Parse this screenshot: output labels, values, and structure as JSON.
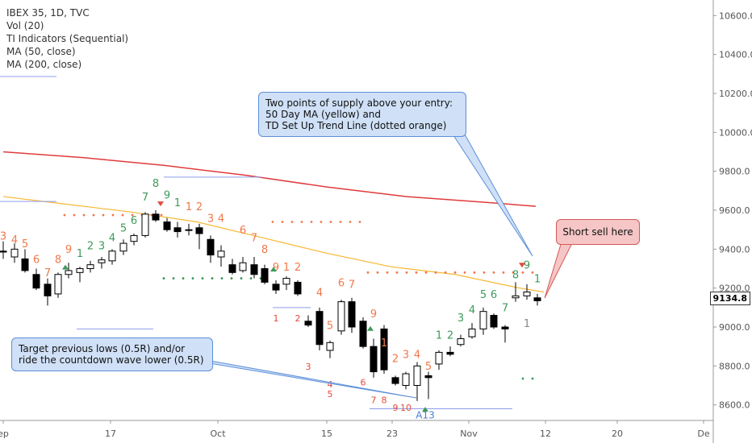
{
  "legend": {
    "symbol": "IBEX 35, 1D, TVC",
    "vol": "Vol (20)",
    "ti": "TI Indicators (Sequential)",
    "ma50": "MA (50, close)",
    "ma200": "MA (200, close)"
  },
  "callouts": {
    "supply": "Two points of supply above your entry:\n50 Day MA (yellow) and\nTD Set Up Trend Line (dotted orange)",
    "short": "Short sell here",
    "target": "Target previous lows (0.5R) and/or\nride the countdown wave lower (0.5R)"
  },
  "last_price": "9134.8",
  "colors": {
    "ma50": "#f7b731",
    "ma200": "#e03b3b",
    "setup_sell": "#f0784a",
    "setup_buy": "#3d9a5a",
    "countdown": "#e24b3b",
    "trendline_blue": "#8c9eec"
  },
  "chart_data": {
    "type": "candlestick",
    "y_ticks": [
      "10600.0",
      "10400.0",
      "10200.0",
      "10000.0",
      "9800.0",
      "9600.0",
      "9400.0",
      "9200.0",
      "9000.0",
      "8800.0",
      "8600.0"
    ],
    "x_ticks": [
      "ep",
      "17",
      "Oct",
      "15",
      "23",
      "Nov",
      "12",
      "20",
      "De"
    ],
    "ylim": [
      8520,
      10680
    ],
    "ma200": [
      [
        0,
        9900
      ],
      [
        100,
        9870
      ],
      [
        200,
        9830
      ],
      [
        300,
        9780
      ],
      [
        400,
        9720
      ],
      [
        500,
        9670
      ],
      [
        600,
        9640
      ],
      [
        660,
        9620
      ]
    ],
    "ma50": [
      [
        0,
        9670
      ],
      [
        80,
        9630
      ],
      [
        160,
        9590
      ],
      [
        240,
        9540
      ],
      [
        320,
        9460
      ],
      [
        400,
        9380
      ],
      [
        480,
        9310
      ],
      [
        560,
        9270
      ],
      [
        640,
        9200
      ],
      [
        670,
        9180
      ]
    ],
    "candles": [
      {
        "x": 0,
        "o": 9390,
        "h": 9440,
        "l": 9350,
        "c": 9385
      },
      {
        "x": 14,
        "o": 9360,
        "h": 9430,
        "l": 9330,
        "c": 9400
      },
      {
        "x": 27,
        "o": 9350,
        "h": 9400,
        "l": 9280,
        "c": 9290
      },
      {
        "x": 41,
        "o": 9270,
        "h": 9300,
        "l": 9190,
        "c": 9200
      },
      {
        "x": 55,
        "o": 9220,
        "h": 9250,
        "l": 9110,
        "c": 9160
      },
      {
        "x": 68,
        "o": 9170,
        "h": 9280,
        "l": 9150,
        "c": 9270
      },
      {
        "x": 81,
        "o": 9270,
        "h": 9330,
        "l": 9250,
        "c": 9290
      },
      {
        "x": 95,
        "o": 9280,
        "h": 9310,
        "l": 9230,
        "c": 9300
      },
      {
        "x": 108,
        "o": 9300,
        "h": 9340,
        "l": 9280,
        "c": 9320
      },
      {
        "x": 122,
        "o": 9330,
        "h": 9360,
        "l": 9300,
        "c": 9345
      },
      {
        "x": 135,
        "o": 9340,
        "h": 9400,
        "l": 9320,
        "c": 9390
      },
      {
        "x": 149,
        "o": 9390,
        "h": 9450,
        "l": 9370,
        "c": 9430
      },
      {
        "x": 162,
        "o": 9440,
        "h": 9480,
        "l": 9420,
        "c": 9470
      },
      {
        "x": 176,
        "o": 9470,
        "h": 9590,
        "l": 9460,
        "c": 9580
      },
      {
        "x": 189,
        "o": 9580,
        "h": 9600,
        "l": 9540,
        "c": 9550
      },
      {
        "x": 203,
        "o": 9540,
        "h": 9560,
        "l": 9490,
        "c": 9500
      },
      {
        "x": 216,
        "o": 9510,
        "h": 9540,
        "l": 9460,
        "c": 9490
      },
      {
        "x": 230,
        "o": 9500,
        "h": 9530,
        "l": 9470,
        "c": 9500
      },
      {
        "x": 243,
        "o": 9510,
        "h": 9530,
        "l": 9400,
        "c": 9480
      },
      {
        "x": 257,
        "o": 9450,
        "h": 9470,
        "l": 9330,
        "c": 9370
      },
      {
        "x": 270,
        "o": 9360,
        "h": 9420,
        "l": 9310,
        "c": 9390
      },
      {
        "x": 284,
        "o": 9320,
        "h": 9350,
        "l": 9270,
        "c": 9280
      },
      {
        "x": 297,
        "o": 9290,
        "h": 9360,
        "l": 9280,
        "c": 9330
      },
      {
        "x": 311,
        "o": 9320,
        "h": 9360,
        "l": 9250,
        "c": 9270
      },
      {
        "x": 324,
        "o": 9300,
        "h": 9320,
        "l": 9220,
        "c": 9230
      },
      {
        "x": 338,
        "o": 9220,
        "h": 9240,
        "l": 9170,
        "c": 9190
      },
      {
        "x": 351,
        "o": 9220,
        "h": 9260,
        "l": 9190,
        "c": 9250
      },
      {
        "x": 365,
        "o": 9230,
        "h": 9240,
        "l": 9160,
        "c": 9170
      },
      {
        "x": 378,
        "o": 9030,
        "h": 9060,
        "l": 9000,
        "c": 9010
      },
      {
        "x": 392,
        "o": 9080,
        "h": 9100,
        "l": 8880,
        "c": 8910
      },
      {
        "x": 405,
        "o": 8880,
        "h": 8930,
        "l": 8840,
        "c": 8920
      },
      {
        "x": 419,
        "o": 8980,
        "h": 9140,
        "l": 8960,
        "c": 9130
      },
      {
        "x": 432,
        "o": 9130,
        "h": 9150,
        "l": 8970,
        "c": 9000
      },
      {
        "x": 446,
        "o": 9030,
        "h": 9050,
        "l": 8890,
        "c": 8900
      },
      {
        "x": 459,
        "o": 8900,
        "h": 8940,
        "l": 8740,
        "c": 8770
      },
      {
        "x": 472,
        "o": 8990,
        "h": 9010,
        "l": 8760,
        "c": 8780
      },
      {
        "x": 486,
        "o": 8740,
        "h": 8750,
        "l": 8700,
        "c": 8710
      },
      {
        "x": 499,
        "o": 8700,
        "h": 8770,
        "l": 8680,
        "c": 8760
      },
      {
        "x": 513,
        "o": 8700,
        "h": 8820,
        "l": 8620,
        "c": 8800
      },
      {
        "x": 527,
        "o": 8750,
        "h": 8770,
        "l": 8630,
        "c": 8740
      },
      {
        "x": 540,
        "o": 8810,
        "h": 8880,
        "l": 8780,
        "c": 8870
      },
      {
        "x": 554,
        "o": 8870,
        "h": 8900,
        "l": 8850,
        "c": 8860
      },
      {
        "x": 567,
        "o": 8910,
        "h": 8960,
        "l": 8900,
        "c": 8940
      },
      {
        "x": 581,
        "o": 8950,
        "h": 9020,
        "l": 8940,
        "c": 8990
      },
      {
        "x": 595,
        "o": 8990,
        "h": 9100,
        "l": 8960,
        "c": 9080
      },
      {
        "x": 608,
        "o": 9060,
        "h": 9070,
        "l": 8990,
        "c": 9000
      },
      {
        "x": 622,
        "o": 9000,
        "h": 9010,
        "l": 8920,
        "c": 8990
      },
      {
        "x": 635,
        "o": 9150,
        "h": 9230,
        "l": 9130,
        "c": 9160
      },
      {
        "x": 649,
        "o": 9160,
        "h": 9220,
        "l": 9140,
        "c": 9180
      },
      {
        "x": 662,
        "o": 9150,
        "h": 9170,
        "l": 9110,
        "c": 9135
      }
    ],
    "seq_numbers": [
      {
        "x": 0,
        "y": 9450,
        "t": "3",
        "k": "sell"
      },
      {
        "x": 14,
        "y": 9430,
        "t": "4",
        "k": "sell"
      },
      {
        "x": 27,
        "y": 9410,
        "t": "5",
        "k": "sell"
      },
      {
        "x": 41,
        "y": 9330,
        "t": "6",
        "k": "sell"
      },
      {
        "x": 55,
        "y": 9260,
        "t": "7",
        "k": "sell"
      },
      {
        "x": 68,
        "y": 9330,
        "t": "8",
        "k": "sell"
      },
      {
        "x": 81,
        "y": 9380,
        "t": "9",
        "k": "sell"
      },
      {
        "x": 95,
        "y": 9360,
        "t": "1",
        "k": "buy"
      },
      {
        "x": 108,
        "y": 9400,
        "t": "2",
        "k": "buy"
      },
      {
        "x": 122,
        "y": 9400,
        "t": "3",
        "k": "buy"
      },
      {
        "x": 135,
        "y": 9440,
        "t": "4",
        "k": "buy"
      },
      {
        "x": 149,
        "y": 9490,
        "t": "5",
        "k": "buy"
      },
      {
        "x": 162,
        "y": 9530,
        "t": "6",
        "k": "buy"
      },
      {
        "x": 176,
        "y": 9650,
        "t": "7",
        "k": "buy"
      },
      {
        "x": 189,
        "y": 9720,
        "t": "8",
        "k": "buy"
      },
      {
        "x": 203,
        "y": 9660,
        "t": "9",
        "k": "buy"
      },
      {
        "x": 216,
        "y": 9620,
        "t": "1",
        "k": "buy"
      },
      {
        "x": 230,
        "y": 9600,
        "t": "1",
        "k": "sell"
      },
      {
        "x": 243,
        "y": 9600,
        "t": "2",
        "k": "sell"
      },
      {
        "x": 257,
        "y": 9540,
        "t": "3",
        "k": "sell"
      },
      {
        "x": 270,
        "y": 9540,
        "t": "4",
        "k": "sell"
      },
      {
        "x": 297,
        "y": 9480,
        "t": "6",
        "k": "sell"
      },
      {
        "x": 311,
        "y": 9440,
        "t": "7",
        "k": "sell"
      },
      {
        "x": 324,
        "y": 9380,
        "t": "8",
        "k": "sell"
      },
      {
        "x": 338,
        "y": 9290,
        "t": "9",
        "k": "sell"
      },
      {
        "x": 351,
        "y": 9290,
        "t": "1",
        "k": "sell"
      },
      {
        "x": 365,
        "y": 9290,
        "t": "2",
        "k": "sell"
      },
      {
        "x": 392,
        "y": 9160,
        "t": "4",
        "k": "sell"
      },
      {
        "x": 405,
        "y": 8990,
        "t": "5",
        "k": "sell"
      },
      {
        "x": 419,
        "y": 9210,
        "t": "6",
        "k": "sell"
      },
      {
        "x": 432,
        "y": 9200,
        "t": "7",
        "k": "sell"
      },
      {
        "x": 459,
        "y": 9050,
        "t": "9",
        "k": "sell"
      },
      {
        "x": 472,
        "y": 8900,
        "t": "1",
        "k": "sell"
      },
      {
        "x": 486,
        "y": 8820,
        "t": "2",
        "k": "sell"
      },
      {
        "x": 499,
        "y": 8840,
        "t": "3",
        "k": "sell"
      },
      {
        "x": 513,
        "y": 8840,
        "t": "4",
        "k": "sell"
      },
      {
        "x": 527,
        "y": 8780,
        "t": "5",
        "k": "sell"
      },
      {
        "x": 540,
        "y": 8940,
        "t": "1",
        "k": "buy"
      },
      {
        "x": 554,
        "y": 8940,
        "t": "2",
        "k": "buy"
      },
      {
        "x": 567,
        "y": 9030,
        "t": "3",
        "k": "buy"
      },
      {
        "x": 581,
        "y": 9070,
        "t": "4",
        "k": "buy"
      },
      {
        "x": 595,
        "y": 9150,
        "t": "5",
        "k": "buy"
      },
      {
        "x": 608,
        "y": 9150,
        "t": "6",
        "k": "buy"
      },
      {
        "x": 622,
        "y": 9080,
        "t": "7",
        "k": "buy"
      },
      {
        "x": 635,
        "y": 9250,
        "t": "8",
        "k": "buy"
      },
      {
        "x": 649,
        "y": 9300,
        "t": "9",
        "k": "buy"
      },
      {
        "x": 662,
        "y": 9230,
        "t": "1",
        "k": "buy"
      },
      {
        "x": 649,
        "y": 9000,
        "t": "1",
        "k": "gray"
      }
    ],
    "countdown_numbers": [
      {
        "x": 338,
        "y": 9030,
        "t": "1"
      },
      {
        "x": 365,
        "y": 9030,
        "t": "2"
      },
      {
        "x": 378,
        "y": 8780,
        "t": "3"
      },
      {
        "x": 405,
        "y": 8690,
        "t": "4"
      },
      {
        "x": 405,
        "y": 8640,
        "t": "5"
      },
      {
        "x": 446,
        "y": 8700,
        "t": "6"
      },
      {
        "x": 459,
        "y": 8610,
        "t": "7"
      },
      {
        "x": 472,
        "y": 8610,
        "t": "8"
      },
      {
        "x": 486,
        "y": 8570,
        "t": "9"
      },
      {
        "x": 499,
        "y": 8570,
        "t": "10"
      }
    ],
    "a13_label": "A13"
  }
}
